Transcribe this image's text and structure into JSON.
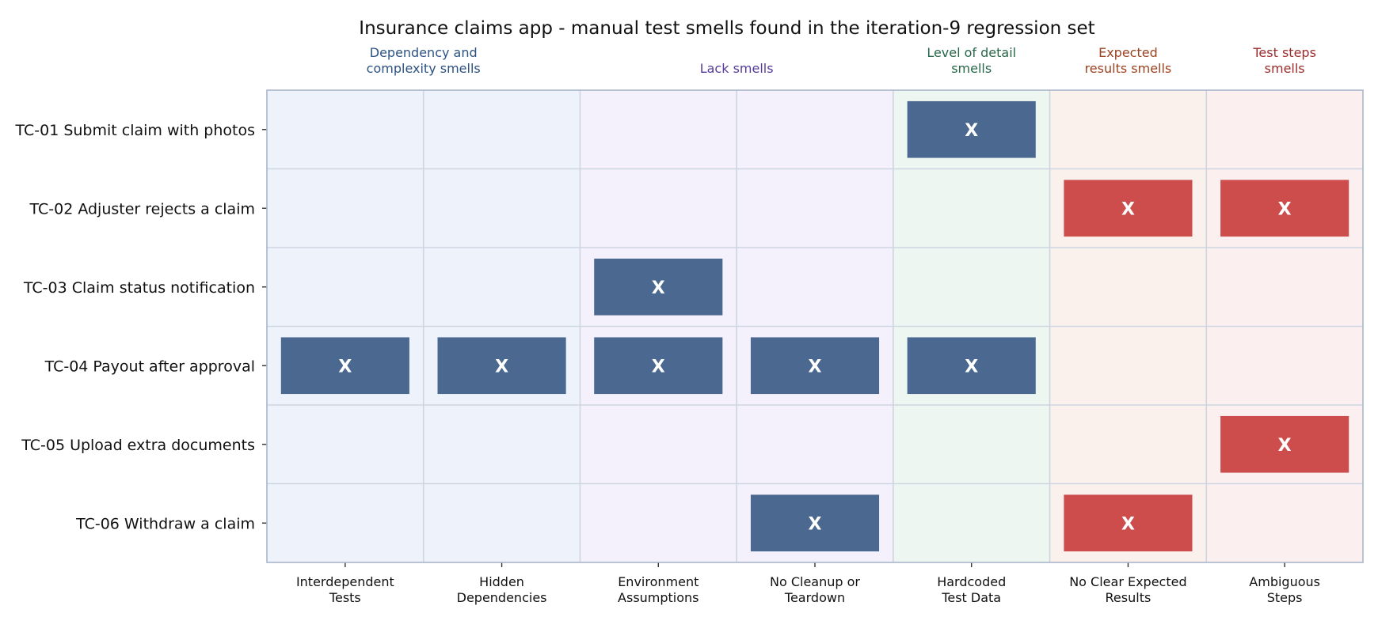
{
  "chart_data": {
    "type": "heatmap",
    "title": "Insurance claims app - manual test smells found in the iteration-9 regression set",
    "groups": [
      {
        "label": "Dependency and\ncomplexity smells",
        "columns": [
          0,
          1
        ],
        "label_color": "#2c5282",
        "bg_color": "#eef3fb"
      },
      {
        "label": "Lack smells",
        "columns": [
          2,
          3
        ],
        "label_color": "#553c9a",
        "bg_color": "#f4f1fc"
      },
      {
        "label": "Level of detail\nsmells",
        "columns": [
          4
        ],
        "label_color": "#276749",
        "bg_color": "#edf6f1"
      },
      {
        "label": "Expected\nresults smells",
        "columns": [
          5
        ],
        "label_color": "#9c4221",
        "bg_color": "#fbf1ec"
      },
      {
        "label": "Test steps\nsmells",
        "columns": [
          6
        ],
        "label_color": "#9b2c2c",
        "bg_color": "#fbefef"
      }
    ],
    "columns": [
      "Interdependent\nTests",
      "Hidden\nDependencies",
      "Environment\nAssumptions",
      "No Cleanup or\nTeardown",
      "Hardcoded\nTest Data",
      "No Clear Expected\nResults",
      "Ambiguous\nSteps"
    ],
    "rows": [
      "TC-01 Submit claim with photos",
      "TC-02 Adjuster rejects a claim",
      "TC-03 Claim status notification",
      "TC-04 Payout after approval",
      "TC-05 Upload extra documents",
      "TC-06 Withdraw a claim"
    ],
    "matrix": [
      [
        0,
        0,
        0,
        0,
        1,
        0,
        0
      ],
      [
        0,
        0,
        0,
        0,
        0,
        1,
        1
      ],
      [
        0,
        0,
        1,
        0,
        0,
        0,
        0
      ],
      [
        1,
        1,
        1,
        1,
        1,
        0,
        0
      ],
      [
        0,
        0,
        0,
        0,
        0,
        0,
        1
      ],
      [
        0,
        0,
        0,
        1,
        0,
        1,
        0
      ]
    ],
    "mark_label": "X",
    "mark_colors": [
      "#4a6890",
      "#4a6890",
      "#4a6890",
      "#4a6890",
      "#4a6890",
      "#cd4d4d",
      "#cd4d4d"
    ],
    "grid": true
  }
}
